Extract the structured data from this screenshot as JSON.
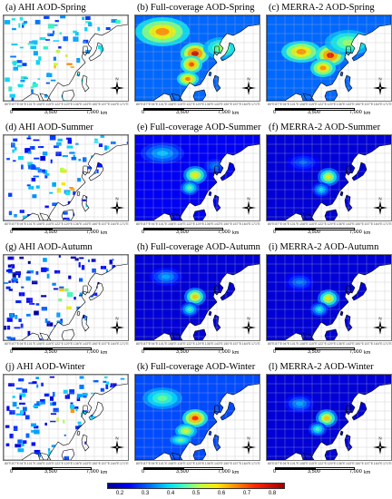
{
  "panels": [
    {
      "title": "(a) AHI AOD-Spring",
      "type": "ahi",
      "season": "spring"
    },
    {
      "title": "(b) Full-coverage AOD-Spring",
      "type": "full",
      "season": "spring"
    },
    {
      "title": "(c) MERRA-2 AOD-Spring",
      "type": "merra",
      "season": "spring"
    },
    {
      "title": "(d) AHI AOD-Summer",
      "type": "ahi",
      "season": "summer"
    },
    {
      "title": "(e) Full-coverage AOD-Summer",
      "type": "full",
      "season": "summer"
    },
    {
      "title": "(f) MERRA-2 AOD-Summer",
      "type": "merra",
      "season": "summer"
    },
    {
      "title": "(g) AHI AOD-Autumn",
      "type": "ahi",
      "season": "autumn"
    },
    {
      "title": "(h) Full-coverage AOD-Autumn",
      "type": "full",
      "season": "autumn"
    },
    {
      "title": "(i) MERRA-2 AOD-Autumn",
      "type": "merra",
      "season": "autumn"
    },
    {
      "title": "(j) AHI AOD-Winter",
      "type": "ahi",
      "season": "winter"
    },
    {
      "title": "(k) Full-coverage AOD-Winter",
      "type": "full",
      "season": "winter"
    },
    {
      "title": "(l) MERRA-2 AOD-Winter",
      "type": "merra",
      "season": "winter"
    }
  ],
  "longitude_ticks": [
    "80°E",
    "87°E",
    "94°E",
    "101°E",
    "108°E",
    "115°E",
    "122°E",
    "129°E",
    "136°E",
    "143°E",
    "150°E",
    "157°E",
    "164°E",
    "171°E"
  ],
  "scale_bar": {
    "labels": [
      "0",
      "3,500",
      "7,000"
    ],
    "unit": "km"
  },
  "north_label": "N",
  "colorbar": {
    "ticks": [
      "0.2",
      "0.3",
      "0.4",
      "0.5",
      "0.6",
      "0.7",
      "0.8"
    ],
    "min": 0.15,
    "max": 0.85,
    "colors": [
      "#00008f",
      "#0000ff",
      "#0070ff",
      "#00d8ff",
      "#4cffb0",
      "#b8ff48",
      "#ffe800",
      "#ff9000",
      "#ff2400",
      "#a00000"
    ]
  }
}
